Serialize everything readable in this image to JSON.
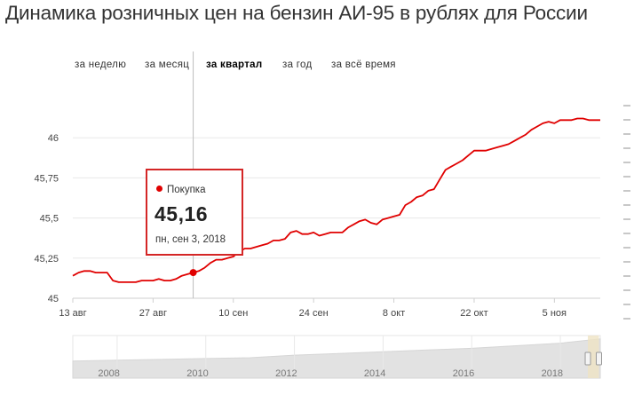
{
  "title": "Динамика розничных цен на бензин АИ-95 в рублях для России",
  "periods": [
    {
      "label": "за неделю",
      "active": false
    },
    {
      "label": "за месяц",
      "active": false
    },
    {
      "label": "за квартал",
      "active": true
    },
    {
      "label": "за год",
      "active": false
    },
    {
      "label": "за всё время",
      "active": false
    }
  ],
  "tooltip": {
    "series": "Покупка",
    "value": "45,16",
    "date": "пн, сен 3, 2018"
  },
  "colors": {
    "line": "#e00000",
    "tooltip_border": "#d42626",
    "grid": "#e8e8e8",
    "navigator_fill": "#e2e2e2",
    "navigator_handle": "#efe3c4"
  },
  "chart_data": {
    "type": "line",
    "series": [
      {
        "name": "Покупка",
        "x": [
          "2018-08-13",
          "2018-08-14",
          "2018-08-15",
          "2018-08-16",
          "2018-08-17",
          "2018-08-18",
          "2018-08-19",
          "2018-08-20",
          "2018-08-21",
          "2018-08-22",
          "2018-08-23",
          "2018-08-24",
          "2018-08-25",
          "2018-08-26",
          "2018-08-27",
          "2018-08-28",
          "2018-08-29",
          "2018-08-30",
          "2018-08-31",
          "2018-09-01",
          "2018-09-02",
          "2018-09-03",
          "2018-09-04",
          "2018-09-05",
          "2018-09-06",
          "2018-09-07",
          "2018-09-08",
          "2018-09-09",
          "2018-09-10",
          "2018-09-11",
          "2018-09-12",
          "2018-09-13",
          "2018-09-14",
          "2018-09-15",
          "2018-09-16",
          "2018-09-17",
          "2018-09-18",
          "2018-09-19",
          "2018-09-20",
          "2018-09-21",
          "2018-09-22",
          "2018-09-23",
          "2018-09-24",
          "2018-09-25",
          "2018-09-26",
          "2018-09-27",
          "2018-09-28",
          "2018-09-29",
          "2018-09-30",
          "2018-10-01",
          "2018-10-02",
          "2018-10-03",
          "2018-10-04",
          "2018-10-05",
          "2018-10-06",
          "2018-10-07",
          "2018-10-08",
          "2018-10-09",
          "2018-10-10",
          "2018-10-11",
          "2018-10-12",
          "2018-10-13",
          "2018-10-14",
          "2018-10-15",
          "2018-10-16",
          "2018-10-17",
          "2018-10-18",
          "2018-10-19",
          "2018-10-20",
          "2018-10-21",
          "2018-10-22",
          "2018-10-23",
          "2018-10-24",
          "2018-10-25",
          "2018-10-26",
          "2018-10-27",
          "2018-10-28",
          "2018-10-29",
          "2018-10-30",
          "2018-10-31",
          "2018-11-01",
          "2018-11-02",
          "2018-11-03",
          "2018-11-04",
          "2018-11-05",
          "2018-11-06",
          "2018-11-07",
          "2018-11-08",
          "2018-11-09",
          "2018-11-10",
          "2018-11-11",
          "2018-11-12",
          "2018-11-13"
        ],
        "y": [
          45.14,
          45.16,
          45.17,
          45.17,
          45.16,
          45.16,
          45.16,
          45.11,
          45.1,
          45.1,
          45.1,
          45.1,
          45.11,
          45.11,
          45.11,
          45.12,
          45.11,
          45.11,
          45.12,
          45.14,
          45.15,
          45.16,
          45.17,
          45.19,
          45.22,
          45.24,
          45.24,
          45.25,
          45.26,
          45.29,
          45.31,
          45.31,
          45.32,
          45.33,
          45.34,
          45.36,
          45.36,
          45.37,
          45.41,
          45.42,
          45.4,
          45.4,
          45.41,
          45.39,
          45.4,
          45.41,
          45.41,
          45.41,
          45.44,
          45.46,
          45.48,
          45.49,
          45.47,
          45.46,
          45.49,
          45.5,
          45.51,
          45.52,
          45.58,
          45.6,
          45.63,
          45.64,
          45.67,
          45.68,
          45.74,
          45.8,
          45.82,
          45.84,
          45.86,
          45.89,
          45.92,
          45.92,
          45.92,
          45.93,
          45.94,
          45.95,
          45.96,
          45.98,
          46.0,
          46.02,
          46.05,
          46.07,
          46.09,
          46.1,
          46.09,
          46.11,
          46.11,
          46.11,
          46.12,
          46.12,
          46.11,
          46.11,
          46.11
        ]
      }
    ],
    "x_range": [
      "2018-08-13",
      "2018-11-13"
    ],
    "x_ticks": [
      {
        "date": "2018-08-13",
        "label": "13 авг"
      },
      {
        "date": "2018-08-27",
        "label": "27 авг"
      },
      {
        "date": "2018-09-10",
        "label": "10 сен"
      },
      {
        "date": "2018-09-24",
        "label": "24 сен"
      },
      {
        "date": "2018-10-08",
        "label": "8 окт"
      },
      {
        "date": "2018-10-22",
        "label": "22 окт"
      },
      {
        "date": "2018-11-05",
        "label": "5 ноя"
      }
    ],
    "ylim": [
      45,
      46.25
    ],
    "y_ticks": [
      {
        "value": 45,
        "label": "45"
      },
      {
        "value": 45.25,
        "label": "45,25"
      },
      {
        "value": 45.5,
        "label": "45,5"
      },
      {
        "value": 45.75,
        "label": "45,75"
      },
      {
        "value": 46,
        "label": "46"
      }
    ],
    "grid": true,
    "crosshair_date": "2018-09-03",
    "highlight": {
      "date": "2018-09-03",
      "value": 45.16
    },
    "navigator": {
      "type": "area",
      "x_range": [
        2007,
        2018.9
      ],
      "labels": [
        "2008",
        "2010",
        "2012",
        "2014",
        "2016",
        "2018"
      ],
      "x": [
        2007,
        2008,
        2009,
        2010,
        2011,
        2012,
        2013,
        2014,
        2015,
        2016,
        2017,
        2018,
        2018.9
      ],
      "y": [
        20,
        21,
        22,
        23,
        24,
        27,
        29,
        31,
        33,
        35,
        38,
        41,
        46
      ],
      "selected_range": [
        2018.62,
        2018.87
      ]
    }
  }
}
